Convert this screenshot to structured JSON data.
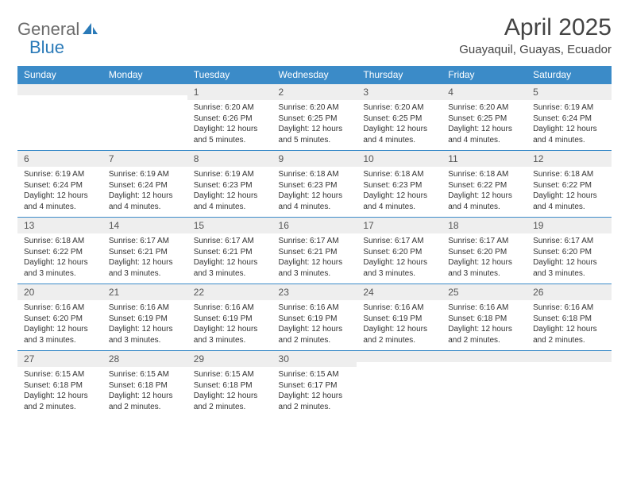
{
  "logo": {
    "text1": "General",
    "text2": "Blue"
  },
  "title": "April 2025",
  "location": "Guayaquil, Guayas, Ecuador",
  "colors": {
    "header_bg": "#3b8bc8",
    "header_text": "#ffffff",
    "daynum_bg": "#eeeeee",
    "border": "#3b8bc8",
    "logo_gray": "#6b6b6b",
    "logo_blue": "#2a7ab8",
    "body_text": "#333333"
  },
  "weekdays": [
    "Sunday",
    "Monday",
    "Tuesday",
    "Wednesday",
    "Thursday",
    "Friday",
    "Saturday"
  ],
  "weeks": [
    [
      {
        "num": "",
        "sunrise": "",
        "sunset": "",
        "daylight": ""
      },
      {
        "num": "",
        "sunrise": "",
        "sunset": "",
        "daylight": ""
      },
      {
        "num": "1",
        "sunrise": "Sunrise: 6:20 AM",
        "sunset": "Sunset: 6:26 PM",
        "daylight": "Daylight: 12 hours and 5 minutes."
      },
      {
        "num": "2",
        "sunrise": "Sunrise: 6:20 AM",
        "sunset": "Sunset: 6:25 PM",
        "daylight": "Daylight: 12 hours and 5 minutes."
      },
      {
        "num": "3",
        "sunrise": "Sunrise: 6:20 AM",
        "sunset": "Sunset: 6:25 PM",
        "daylight": "Daylight: 12 hours and 4 minutes."
      },
      {
        "num": "4",
        "sunrise": "Sunrise: 6:20 AM",
        "sunset": "Sunset: 6:25 PM",
        "daylight": "Daylight: 12 hours and 4 minutes."
      },
      {
        "num": "5",
        "sunrise": "Sunrise: 6:19 AM",
        "sunset": "Sunset: 6:24 PM",
        "daylight": "Daylight: 12 hours and 4 minutes."
      }
    ],
    [
      {
        "num": "6",
        "sunrise": "Sunrise: 6:19 AM",
        "sunset": "Sunset: 6:24 PM",
        "daylight": "Daylight: 12 hours and 4 minutes."
      },
      {
        "num": "7",
        "sunrise": "Sunrise: 6:19 AM",
        "sunset": "Sunset: 6:24 PM",
        "daylight": "Daylight: 12 hours and 4 minutes."
      },
      {
        "num": "8",
        "sunrise": "Sunrise: 6:19 AM",
        "sunset": "Sunset: 6:23 PM",
        "daylight": "Daylight: 12 hours and 4 minutes."
      },
      {
        "num": "9",
        "sunrise": "Sunrise: 6:18 AM",
        "sunset": "Sunset: 6:23 PM",
        "daylight": "Daylight: 12 hours and 4 minutes."
      },
      {
        "num": "10",
        "sunrise": "Sunrise: 6:18 AM",
        "sunset": "Sunset: 6:23 PM",
        "daylight": "Daylight: 12 hours and 4 minutes."
      },
      {
        "num": "11",
        "sunrise": "Sunrise: 6:18 AM",
        "sunset": "Sunset: 6:22 PM",
        "daylight": "Daylight: 12 hours and 4 minutes."
      },
      {
        "num": "12",
        "sunrise": "Sunrise: 6:18 AM",
        "sunset": "Sunset: 6:22 PM",
        "daylight": "Daylight: 12 hours and 4 minutes."
      }
    ],
    [
      {
        "num": "13",
        "sunrise": "Sunrise: 6:18 AM",
        "sunset": "Sunset: 6:22 PM",
        "daylight": "Daylight: 12 hours and 3 minutes."
      },
      {
        "num": "14",
        "sunrise": "Sunrise: 6:17 AM",
        "sunset": "Sunset: 6:21 PM",
        "daylight": "Daylight: 12 hours and 3 minutes."
      },
      {
        "num": "15",
        "sunrise": "Sunrise: 6:17 AM",
        "sunset": "Sunset: 6:21 PM",
        "daylight": "Daylight: 12 hours and 3 minutes."
      },
      {
        "num": "16",
        "sunrise": "Sunrise: 6:17 AM",
        "sunset": "Sunset: 6:21 PM",
        "daylight": "Daylight: 12 hours and 3 minutes."
      },
      {
        "num": "17",
        "sunrise": "Sunrise: 6:17 AM",
        "sunset": "Sunset: 6:20 PM",
        "daylight": "Daylight: 12 hours and 3 minutes."
      },
      {
        "num": "18",
        "sunrise": "Sunrise: 6:17 AM",
        "sunset": "Sunset: 6:20 PM",
        "daylight": "Daylight: 12 hours and 3 minutes."
      },
      {
        "num": "19",
        "sunrise": "Sunrise: 6:17 AM",
        "sunset": "Sunset: 6:20 PM",
        "daylight": "Daylight: 12 hours and 3 minutes."
      }
    ],
    [
      {
        "num": "20",
        "sunrise": "Sunrise: 6:16 AM",
        "sunset": "Sunset: 6:20 PM",
        "daylight": "Daylight: 12 hours and 3 minutes."
      },
      {
        "num": "21",
        "sunrise": "Sunrise: 6:16 AM",
        "sunset": "Sunset: 6:19 PM",
        "daylight": "Daylight: 12 hours and 3 minutes."
      },
      {
        "num": "22",
        "sunrise": "Sunrise: 6:16 AM",
        "sunset": "Sunset: 6:19 PM",
        "daylight": "Daylight: 12 hours and 3 minutes."
      },
      {
        "num": "23",
        "sunrise": "Sunrise: 6:16 AM",
        "sunset": "Sunset: 6:19 PM",
        "daylight": "Daylight: 12 hours and 2 minutes."
      },
      {
        "num": "24",
        "sunrise": "Sunrise: 6:16 AM",
        "sunset": "Sunset: 6:19 PM",
        "daylight": "Daylight: 12 hours and 2 minutes."
      },
      {
        "num": "25",
        "sunrise": "Sunrise: 6:16 AM",
        "sunset": "Sunset: 6:18 PM",
        "daylight": "Daylight: 12 hours and 2 minutes."
      },
      {
        "num": "26",
        "sunrise": "Sunrise: 6:16 AM",
        "sunset": "Sunset: 6:18 PM",
        "daylight": "Daylight: 12 hours and 2 minutes."
      }
    ],
    [
      {
        "num": "27",
        "sunrise": "Sunrise: 6:15 AM",
        "sunset": "Sunset: 6:18 PM",
        "daylight": "Daylight: 12 hours and 2 minutes."
      },
      {
        "num": "28",
        "sunrise": "Sunrise: 6:15 AM",
        "sunset": "Sunset: 6:18 PM",
        "daylight": "Daylight: 12 hours and 2 minutes."
      },
      {
        "num": "29",
        "sunrise": "Sunrise: 6:15 AM",
        "sunset": "Sunset: 6:18 PM",
        "daylight": "Daylight: 12 hours and 2 minutes."
      },
      {
        "num": "30",
        "sunrise": "Sunrise: 6:15 AM",
        "sunset": "Sunset: 6:17 PM",
        "daylight": "Daylight: 12 hours and 2 minutes."
      },
      {
        "num": "",
        "sunrise": "",
        "sunset": "",
        "daylight": ""
      },
      {
        "num": "",
        "sunrise": "",
        "sunset": "",
        "daylight": ""
      },
      {
        "num": "",
        "sunrise": "",
        "sunset": "",
        "daylight": ""
      }
    ]
  ]
}
